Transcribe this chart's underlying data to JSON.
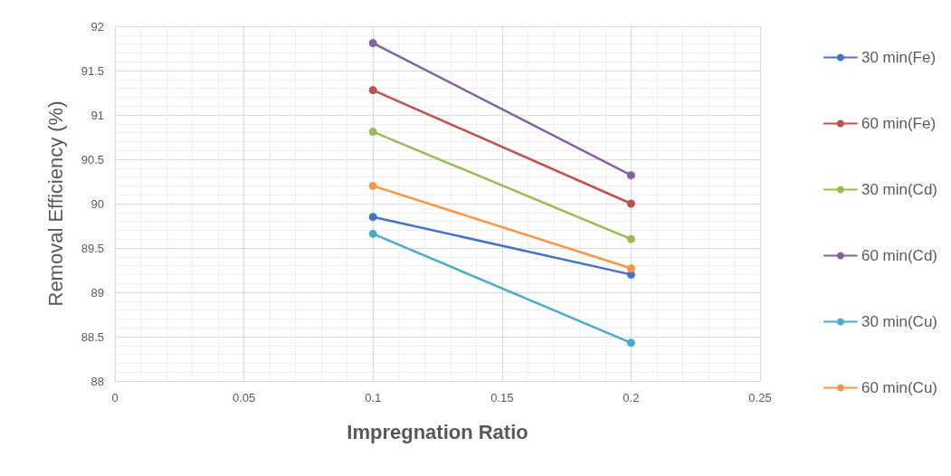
{
  "chart_data": {
    "type": "line",
    "xlabel": "Impregnation Ratio",
    "ylabel": "Removal Efficiency (%)",
    "x": [
      0.1,
      0.2
    ],
    "series": [
      {
        "name": "30 min(Fe)",
        "color": "#4472c4",
        "values": [
          89.85,
          89.2
        ]
      },
      {
        "name": "60 min(Fe)",
        "color": "#c0504d",
        "values": [
          91.28,
          90.0
        ]
      },
      {
        "name": "30 min(Cd)",
        "color": "#9bbb59",
        "values": [
          90.81,
          89.6
        ]
      },
      {
        "name": "60 min(Cd)",
        "color": "#8064a2",
        "values": [
          91.81,
          90.32
        ]
      },
      {
        "name": "30 min(Cu)",
        "color": "#4bacc6",
        "values": [
          89.66,
          88.43
        ]
      },
      {
        "name": "60 min(Cu)",
        "color": "#f79646",
        "values": [
          90.2,
          89.27
        ]
      }
    ],
    "xlim": [
      0,
      0.25
    ],
    "xticks": [
      0,
      0.05,
      0.1,
      0.15,
      0.2,
      0.25
    ],
    "ylim": [
      88,
      92
    ],
    "yticks": [
      88,
      88.5,
      89,
      89.5,
      90,
      90.5,
      91,
      91.5,
      92
    ],
    "grid": true,
    "legend": "right",
    "marker": "circle",
    "line_style": "solid"
  }
}
